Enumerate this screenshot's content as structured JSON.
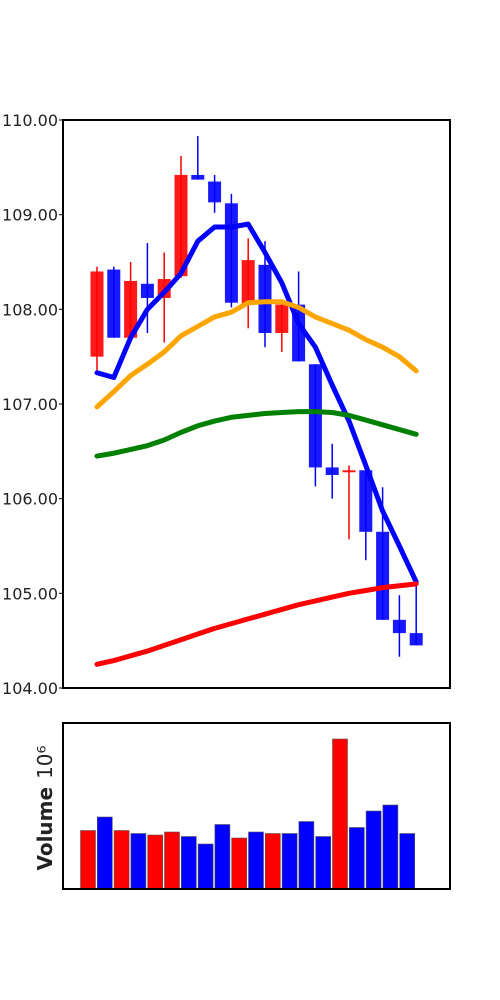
{
  "chart_data": [
    {
      "type": "candlestick",
      "ylim": [
        104.0,
        110.0
      ],
      "yticks": [
        "104.00",
        "105.00",
        "106.00",
        "107.00",
        "108.00",
        "109.00",
        "110.00"
      ],
      "grid": false,
      "colors": {
        "up": "#0000ff",
        "down": "#ff0000"
      },
      "candles": [
        {
          "open": 108.4,
          "high": 108.45,
          "low": 107.35,
          "close": 107.5,
          "color": "red"
        },
        {
          "open": 107.7,
          "high": 108.45,
          "low": 107.7,
          "close": 108.42,
          "color": "blue"
        },
        {
          "open": 108.3,
          "high": 108.5,
          "low": 107.7,
          "close": 107.7,
          "color": "red"
        },
        {
          "open": 108.12,
          "high": 108.7,
          "low": 107.75,
          "close": 108.27,
          "color": "blue"
        },
        {
          "open": 108.32,
          "high": 108.6,
          "low": 107.65,
          "close": 108.12,
          "color": "red"
        },
        {
          "open": 109.42,
          "high": 109.62,
          "low": 108.33,
          "close": 108.35,
          "color": "red"
        },
        {
          "open": 109.37,
          "high": 109.83,
          "low": 109.37,
          "close": 109.42,
          "color": "blue"
        },
        {
          "open": 109.13,
          "high": 109.42,
          "low": 109.02,
          "close": 109.35,
          "color": "blue"
        },
        {
          "open": 108.07,
          "high": 109.22,
          "low": 108.02,
          "close": 109.12,
          "color": "blue"
        },
        {
          "open": 108.52,
          "high": 108.75,
          "low": 107.8,
          "close": 108.05,
          "color": "red"
        },
        {
          "open": 107.75,
          "high": 108.72,
          "low": 107.6,
          "close": 108.47,
          "color": "blue"
        },
        {
          "open": 108.05,
          "high": 108.05,
          "low": 107.55,
          "close": 107.75,
          "color": "red"
        },
        {
          "open": 107.45,
          "high": 108.4,
          "low": 107.45,
          "close": 108.05,
          "color": "blue"
        },
        {
          "open": 106.33,
          "high": 107.42,
          "low": 106.13,
          "close": 107.42,
          "color": "blue"
        },
        {
          "open": 106.25,
          "high": 106.58,
          "low": 106.0,
          "close": 106.33,
          "color": "blue"
        },
        {
          "open": 106.3,
          "high": 106.35,
          "low": 105.57,
          "close": 106.28,
          "color": "red"
        },
        {
          "open": 105.65,
          "high": 106.32,
          "low": 105.35,
          "close": 106.3,
          "color": "blue"
        },
        {
          "open": 104.72,
          "high": 106.12,
          "low": 104.72,
          "close": 105.65,
          "color": "blue"
        },
        {
          "open": 104.58,
          "high": 104.98,
          "low": 104.33,
          "close": 104.72,
          "color": "blue"
        },
        {
          "open": 104.45,
          "high": 105.1,
          "low": 104.45,
          "close": 104.58,
          "color": "blue"
        }
      ],
      "series": [
        {
          "color": "#0000ff",
          "values": [
            107.33,
            107.28,
            107.7,
            108.0,
            108.18,
            108.38,
            108.72,
            108.87,
            108.87,
            108.9,
            108.6,
            108.28,
            107.85,
            107.6,
            107.2,
            106.82,
            106.35,
            105.87,
            105.5,
            105.12
          ]
        },
        {
          "color": "#ffa500",
          "values": [
            106.97,
            107.13,
            107.3,
            107.42,
            107.55,
            107.72,
            107.82,
            107.92,
            107.97,
            108.07,
            108.08,
            108.08,
            108.02,
            107.92,
            107.85,
            107.78,
            107.68,
            107.6,
            107.5,
            107.35
          ]
        },
        {
          "color": "#008000",
          "values": [
            106.45,
            106.48,
            106.52,
            106.56,
            106.62,
            106.7,
            106.77,
            106.82,
            106.86,
            106.88,
            106.9,
            106.91,
            106.92,
            106.92,
            106.91,
            106.88,
            106.83,
            106.78,
            106.73,
            106.68
          ]
        },
        {
          "color": "#ff0000",
          "values": [
            104.25,
            104.29,
            104.34,
            104.39,
            104.45,
            104.51,
            104.57,
            104.63,
            104.68,
            104.73,
            104.78,
            104.83,
            104.88,
            104.92,
            104.96,
            105.0,
            105.03,
            105.06,
            105.08,
            105.1
          ]
        }
      ]
    },
    {
      "type": "bar",
      "ylabel": "Volume",
      "yexponent": "10⁶",
      "ylim": [
        0,
        1.0
      ],
      "values": [
        0.39,
        0.48,
        0.39,
        0.37,
        0.36,
        0.38,
        0.35,
        0.3,
        0.43,
        0.34,
        0.38,
        0.37,
        0.37,
        0.45,
        0.35,
        1.0,
        0.41,
        0.52,
        0.56,
        0.37
      ],
      "colors": [
        "red",
        "blue",
        "red",
        "blue",
        "red",
        "red",
        "blue",
        "blue",
        "blue",
        "red",
        "blue",
        "red",
        "blue",
        "blue",
        "blue",
        "red",
        "blue",
        "blue",
        "blue",
        "blue"
      ]
    }
  ]
}
